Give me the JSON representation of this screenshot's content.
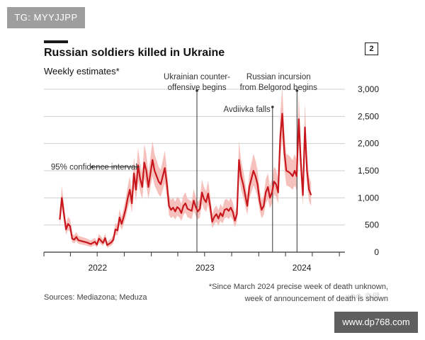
{
  "overlay": {
    "tg_label": "TG: MYYJJPP",
    "url_label": "www.dp768.com",
    "ghost_mark": "wb⊕ 亦健"
  },
  "header": {
    "page_number": "2"
  },
  "footer": {
    "sources": "Sources: Mediazona; Meduza",
    "footnote_line1": "*Since March 2024 precise week of death unknown,",
    "footnote_line2": "week of announcement of death is shown"
  },
  "colors": {
    "line": "#c8161d",
    "band": "#f4b6b0",
    "grid": "#cfcfcf",
    "axis": "#333333",
    "text": "#1a1a1a"
  },
  "chart_data": {
    "type": "line",
    "title": "Russian soldiers killed in Ukraine",
    "subtitle": "Weekly estimates*",
    "xlabel": "",
    "ylabel": "",
    "x_ticks": [
      "2022",
      "2023",
      "2024"
    ],
    "y_ticks": [
      "0",
      "500",
      "1,000",
      "1,500",
      "2,000",
      "2,500",
      "3,000"
    ],
    "ylim": [
      0,
      3000
    ],
    "xlim": [
      "2022-01-01",
      "2024-10-20"
    ],
    "grid": true,
    "annotations": [
      {
        "text_lines": [
          "Ukrainian counter-",
          "offensive begins"
        ],
        "date": "2023-06-05"
      },
      {
        "text_lines": [
          "Avdiivka falls"
        ],
        "date": "2024-02-17"
      },
      {
        "text_lines": [
          "Russian incursion",
          "from Belgorod begins"
        ],
        "date": "2024-05-10"
      },
      {
        "text_lines": [
          "95% confidence interval"
        ],
        "date": "2022-06-14",
        "value": 1570
      }
    ],
    "series": [
      {
        "type": "line",
        "x": [
          "2022-02-24",
          "2022-03-03",
          "2022-03-10",
          "2022-03-17",
          "2022-03-24",
          "2022-03-31",
          "2022-04-07",
          "2022-04-14",
          "2022-04-21",
          "2022-04-28",
          "2022-05-12",
          "2022-05-26",
          "2022-06-09",
          "2022-06-23",
          "2022-06-30",
          "2022-07-07",
          "2022-07-21",
          "2022-07-28",
          "2022-08-04",
          "2022-08-18",
          "2022-08-25",
          "2022-09-01",
          "2022-09-08",
          "2022-09-15",
          "2022-09-22",
          "2022-09-29",
          "2022-10-06",
          "2022-10-13",
          "2022-10-20",
          "2022-10-27",
          "2022-11-03",
          "2022-11-10",
          "2022-11-17",
          "2022-11-24",
          "2022-12-01",
          "2022-12-08",
          "2022-12-15",
          "2022-12-22",
          "2022-12-29",
          "2023-01-05",
          "2023-01-12",
          "2023-01-19",
          "2023-01-26",
          "2023-02-02",
          "2023-02-09",
          "2023-02-16",
          "2023-02-23",
          "2023-03-02",
          "2023-03-09",
          "2023-03-16",
          "2023-03-23",
          "2023-03-30",
          "2023-04-06",
          "2023-04-13",
          "2023-04-20",
          "2023-04-27",
          "2023-05-04",
          "2023-05-11",
          "2023-05-18",
          "2023-05-25",
          "2023-06-01",
          "2023-06-08",
          "2023-06-15",
          "2023-06-22",
          "2023-06-29",
          "2023-07-06",
          "2023-07-13",
          "2023-07-20",
          "2023-07-27",
          "2023-08-03",
          "2023-08-10",
          "2023-08-17",
          "2023-08-24",
          "2023-08-31",
          "2023-09-07",
          "2023-09-14",
          "2023-09-21",
          "2023-09-28",
          "2023-10-05",
          "2023-10-12",
          "2023-10-19",
          "2023-10-26",
          "2023-11-02",
          "2023-11-09",
          "2023-11-16",
          "2023-11-23",
          "2023-11-30",
          "2023-12-07",
          "2023-12-14",
          "2023-12-21",
          "2023-12-28",
          "2024-01-04",
          "2024-01-11",
          "2024-01-18",
          "2024-01-25",
          "2024-02-01",
          "2024-02-08",
          "2024-02-15",
          "2024-02-22",
          "2024-02-29",
          "2024-03-07",
          "2024-03-14",
          "2024-03-21",
          "2024-03-28",
          "2024-04-04",
          "2024-04-11",
          "2024-04-18",
          "2024-04-25",
          "2024-05-02",
          "2024-05-09",
          "2024-05-16",
          "2024-05-23",
          "2024-05-30",
          "2024-06-06",
          "2024-06-13",
          "2024-06-20",
          "2024-06-27"
        ],
        "values": [
          600,
          1000,
          700,
          420,
          520,
          480,
          250,
          230,
          280,
          220,
          200,
          180,
          150,
          190,
          140,
          250,
          170,
          260,
          130,
          180,
          230,
          420,
          400,
          640,
          520,
          650,
          800,
          1000,
          1150,
          900,
          1450,
          1150,
          1600,
          1350,
          1200,
          1650,
          1500,
          1200,
          1450,
          1700,
          1500,
          1400,
          1300,
          1250,
          1400,
          1550,
          1250,
          850,
          780,
          820,
          750,
          830,
          800,
          720,
          850,
          900,
          800,
          780,
          760,
          950,
          830,
          750,
          800,
          1100,
          980,
          920,
          1080,
          850,
          560,
          650,
          700,
          620,
          720,
          660,
          780,
          800,
          760,
          820,
          740,
          580,
          700,
          1700,
          1400,
          1250,
          1050,
          850,
          1200,
          1350,
          1500,
          1400,
          1250,
          950,
          780,
          850,
          1100,
          1200,
          1000,
          1100,
          1300,
          1250,
          1100,
          2100,
          2550,
          1850,
          1500,
          1480,
          1450,
          1400,
          1500,
          1400,
          2450,
          1650,
          1050,
          2300,
          1500,
          1150,
          1050
        ]
      }
    ]
  }
}
